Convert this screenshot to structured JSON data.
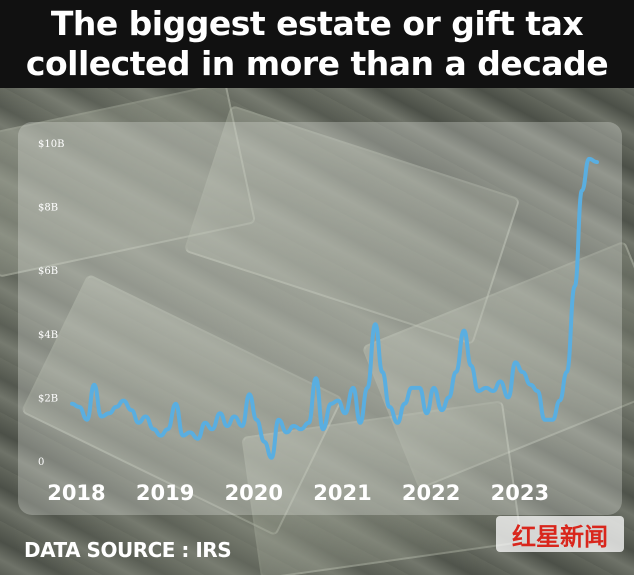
{
  "header": {
    "title_line1": "The biggest estate or gift tax",
    "title_line2": "collected in more than a decade"
  },
  "footer": {
    "source": "DATA SOURCE : IRS",
    "watermark": "红星新闻"
  },
  "colors": {
    "line": "#5aaee0",
    "tick_text": "#ffffff",
    "year_text": "#ffffff",
    "title_band": "#111111"
  },
  "chart_data": {
    "type": "line",
    "title": "The biggest estate or gift tax collected in more than a decade",
    "xlabel": "",
    "ylabel": "",
    "x_range": [
      2018.0,
      2023.92
    ],
    "ylim": [
      0,
      10
    ],
    "y_unit": "billions USD",
    "y_ticks": [
      0,
      2,
      4,
      6,
      8,
      10
    ],
    "y_tick_labels": [
      "0",
      "$2B",
      "$4B",
      "$6B",
      "$8B",
      "$10B"
    ],
    "x_ticks": [
      2018,
      2019,
      2020,
      2021,
      2022,
      2023
    ],
    "x_tick_labels": [
      "2018",
      "2019",
      "2020",
      "2021",
      "2022",
      "2023"
    ],
    "grid": false,
    "legend": "none",
    "series": [
      {
        "x": [
          2018.0,
          2018.08,
          2018.17,
          2018.25,
          2018.33,
          2018.42,
          2018.5,
          2018.58,
          2018.67,
          2018.75,
          2018.83,
          2018.92,
          2019.0,
          2019.08,
          2019.17,
          2019.25,
          2019.33,
          2019.42,
          2019.5,
          2019.58,
          2019.67,
          2019.75,
          2019.83,
          2019.92,
          2020.0,
          2020.08,
          2020.17,
          2020.25,
          2020.33,
          2020.42,
          2020.5,
          2020.58,
          2020.67,
          2020.75,
          2020.83,
          2020.92,
          2021.0,
          2021.08,
          2021.17,
          2021.25,
          2021.33,
          2021.42,
          2021.5,
          2021.58,
          2021.67,
          2021.75,
          2021.83,
          2021.92,
          2022.0,
          2022.08,
          2022.17,
          2022.25,
          2022.33,
          2022.42,
          2022.5,
          2022.58,
          2022.67,
          2022.75,
          2022.83,
          2022.92,
          2023.0,
          2023.08,
          2023.17,
          2023.25,
          2023.33,
          2023.42,
          2023.5,
          2023.58,
          2023.67,
          2023.75,
          2023.83,
          2023.92
        ],
        "values": [
          1.8,
          1.7,
          1.3,
          2.4,
          1.4,
          1.5,
          1.7,
          1.9,
          1.6,
          1.2,
          1.4,
          1.0,
          0.8,
          1.0,
          1.8,
          0.8,
          0.9,
          0.7,
          1.2,
          1.0,
          1.5,
          1.1,
          1.4,
          1.1,
          2.1,
          1.3,
          0.6,
          0.1,
          1.3,
          0.9,
          1.1,
          1.0,
          1.2,
          2.6,
          1.0,
          1.8,
          1.9,
          1.5,
          2.3,
          1.2,
          2.3,
          4.3,
          2.8,
          1.7,
          1.2,
          1.8,
          2.3,
          2.3,
          1.5,
          2.3,
          1.6,
          2.0,
          2.8,
          4.1,
          3.0,
          2.2,
          2.3,
          2.2,
          2.5,
          2.0,
          3.1,
          2.8,
          2.4,
          2.2,
          1.3,
          1.3,
          1.9,
          2.8,
          5.5,
          8.5,
          9.5,
          9.4
        ]
      }
    ]
  }
}
